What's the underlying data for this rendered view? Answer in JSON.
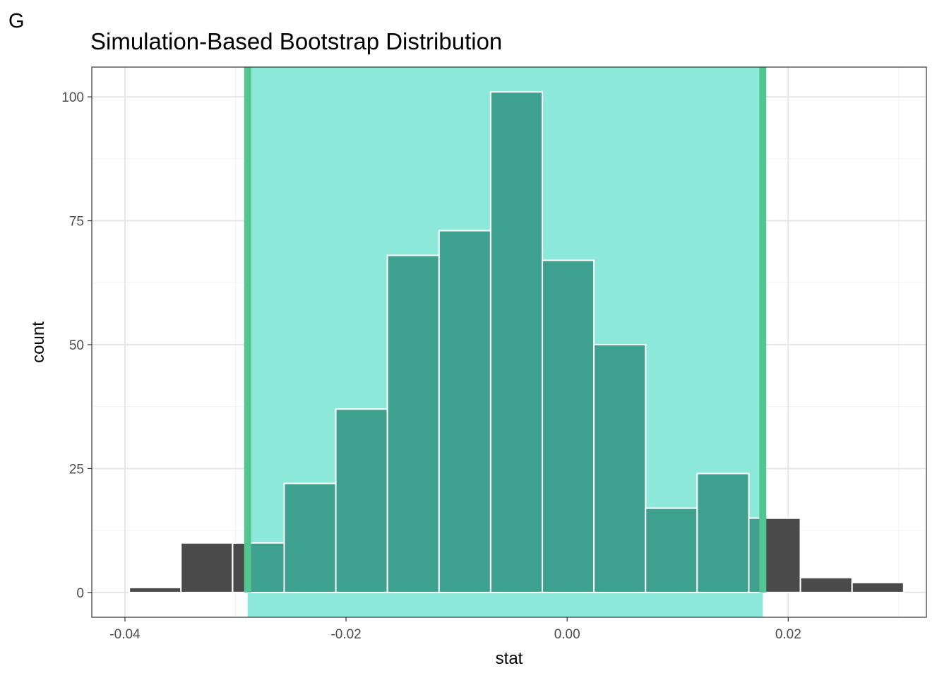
{
  "panel_tag": "G",
  "chart_data": {
    "type": "bar",
    "title": "Simulation-Based Bootstrap Distribution",
    "xlabel": "stat",
    "ylabel": "count",
    "xlim": [
      -0.043,
      0.0325
    ],
    "ylim": [
      -5,
      106
    ],
    "x_ticks": [
      -0.04,
      -0.02,
      0.0,
      0.02
    ],
    "x_tick_labels": [
      "-0.04",
      "-0.02",
      "0.00",
      "0.02"
    ],
    "y_ticks": [
      0,
      25,
      50,
      75,
      100
    ],
    "y_tick_labels": [
      "0",
      "25",
      "50",
      "75",
      "100"
    ],
    "bin_width": 0.00467,
    "bins": [
      {
        "center": -0.03727,
        "count": 1
      },
      {
        "center": -0.0326,
        "count": 10
      },
      {
        "center": -0.02793,
        "count": 10
      },
      {
        "center": -0.02326,
        "count": 22
      },
      {
        "center": -0.01859,
        "count": 37
      },
      {
        "center": -0.01392,
        "count": 68
      },
      {
        "center": -0.00925,
        "count": 73
      },
      {
        "center": -0.00458,
        "count": 101
      },
      {
        "center": 9e-05,
        "count": 67
      },
      {
        "center": 0.00476,
        "count": 50
      },
      {
        "center": 0.00943,
        "count": 17
      },
      {
        "center": 0.0141,
        "count": 24
      },
      {
        "center": 0.01877,
        "count": 15
      },
      {
        "center": 0.02344,
        "count": 3
      },
      {
        "center": 0.02811,
        "count": 2
      }
    ],
    "confidence_interval": {
      "lower": -0.0289,
      "upper": 0.0177
    },
    "colors": {
      "bar_outside": "#4a4a4a",
      "bar_inside": "#3ea08f",
      "bar_edge": "#ffffff",
      "ci_fill": "#8ce9da",
      "ci_line": "#52c592",
      "grid_major": "#e6e6e6",
      "grid_minor": "#f2f2f2",
      "panel_border": "#333333"
    },
    "grid": true
  }
}
